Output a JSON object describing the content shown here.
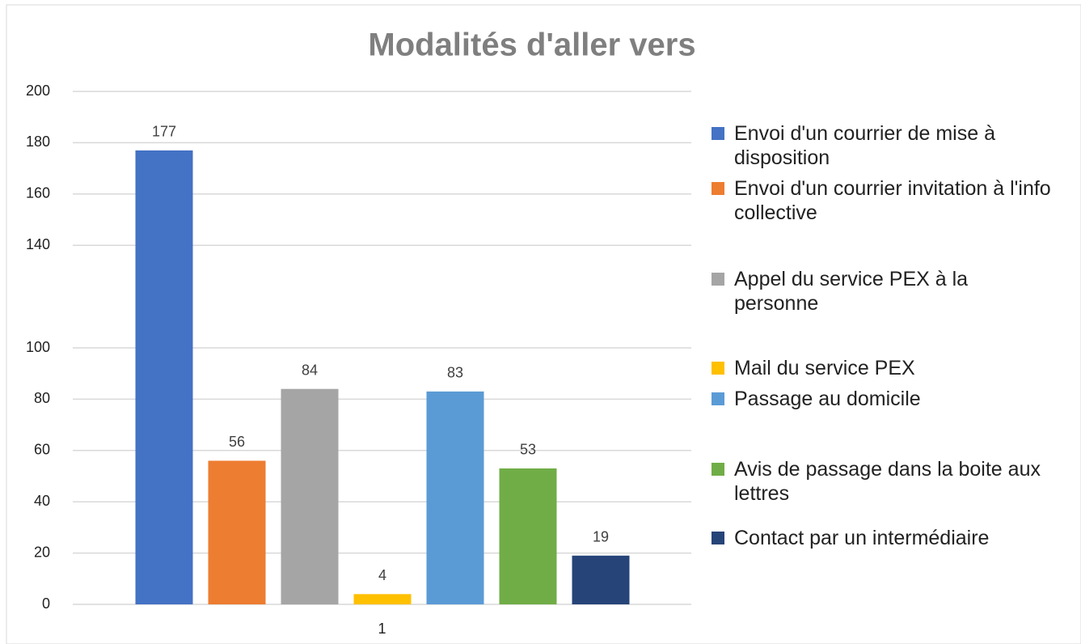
{
  "chart_data": {
    "type": "bar",
    "title": "Modalités d'aller vers",
    "categories": [
      "1"
    ],
    "series": [
      {
        "name": "Envoi d'un courrier de mise à disposition",
        "color": "#4472c4",
        "values": [
          177
        ]
      },
      {
        "name": "Envoi d'un courrier invitation à l'info collective",
        "color": "#ed7d31",
        "values": [
          56
        ]
      },
      {
        "name": "Appel du service PEX à la personne",
        "color": "#a5a5a5",
        "values": [
          84
        ]
      },
      {
        "name": "Mail du service PEX",
        "color": "#ffc000",
        "values": [
          4
        ]
      },
      {
        "name": "Passage au domicile",
        "color": "#5b9bd5",
        "values": [
          83
        ]
      },
      {
        "name": "Avis de passage dans la boite aux lettres",
        "color": "#70ad47",
        "values": [
          53
        ]
      },
      {
        "name": "Contact par un intermédiaire",
        "color": "#264478",
        "values": [
          19
        ]
      }
    ],
    "ylim": [
      0,
      200
    ],
    "yticks": [
      0,
      20,
      40,
      60,
      80,
      100,
      140,
      160,
      180,
      200
    ],
    "grid": true,
    "legend": "right"
  }
}
